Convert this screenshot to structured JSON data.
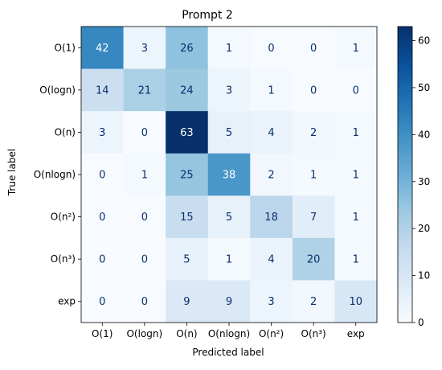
{
  "chart_data": {
    "type": "heatmap",
    "title": "Prompt 2",
    "xlabel": "Predicted label",
    "ylabel": "True label",
    "x_categories": [
      "O(1)",
      "O(logn)",
      "O(n)",
      "O(nlogn)",
      "O(n²)",
      "O(n³)",
      "exp"
    ],
    "y_categories": [
      "O(1)",
      "O(logn)",
      "O(n)",
      "O(nlogn)",
      "O(n²)",
      "O(n³)",
      "exp"
    ],
    "values": [
      [
        42,
        3,
        26,
        1,
        0,
        0,
        1
      ],
      [
        14,
        21,
        24,
        3,
        1,
        0,
        0
      ],
      [
        3,
        0,
        63,
        5,
        4,
        2,
        1
      ],
      [
        0,
        1,
        25,
        38,
        2,
        1,
        1
      ],
      [
        0,
        0,
        15,
        5,
        18,
        7,
        1
      ],
      [
        0,
        0,
        5,
        1,
        4,
        20,
        1
      ],
      [
        0,
        0,
        9,
        9,
        3,
        2,
        10
      ]
    ],
    "colormap": "Blues",
    "vmin": 0,
    "vmax": 63,
    "colorbar_ticks": [
      0,
      10,
      20,
      30,
      40,
      50,
      60
    ]
  }
}
